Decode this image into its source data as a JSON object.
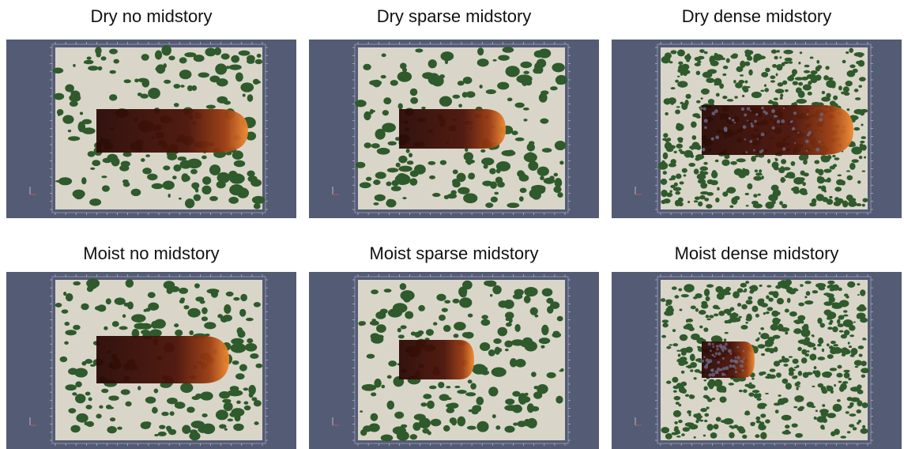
{
  "panels": [
    {
      "title": "Dry no midstory"
    },
    {
      "title": "Dry sparse midstory"
    },
    {
      "title": "Dry dense midstory"
    },
    {
      "title": "Moist no midstory"
    },
    {
      "title": "Moist sparse midstory"
    },
    {
      "title": "Moist dense midstory"
    }
  ]
}
